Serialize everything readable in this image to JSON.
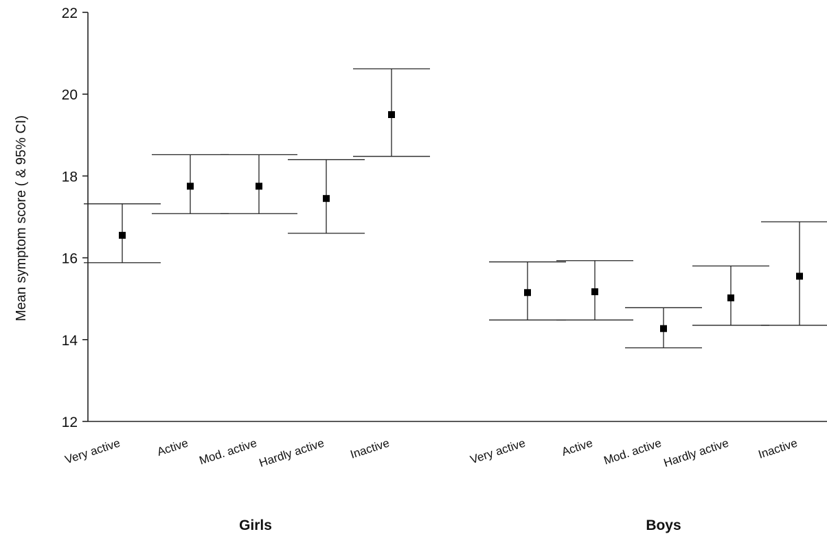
{
  "chart_data": {
    "type": "scatter",
    "title": "",
    "xlabel": "",
    "ylabel": "Mean symptom score ( & 95% CI)",
    "ylim": [
      12,
      22
    ],
    "yticks": [
      12,
      14,
      16,
      18,
      20,
      22
    ],
    "grid": false,
    "legend": "none",
    "marker_color": "#000000",
    "line_color": "#222222",
    "groups": [
      {
        "name": "Girls",
        "categories": [
          "Very active",
          "Active",
          "Mod. active",
          "Hardly active",
          "Inactive"
        ],
        "mean": [
          16.55,
          17.75,
          17.75,
          17.45,
          19.5
        ],
        "ci_low": [
          15.88,
          17.08,
          17.08,
          16.6,
          18.48
        ],
        "ci_high": [
          17.32,
          18.52,
          18.52,
          18.4,
          20.62
        ]
      },
      {
        "name": "Boys",
        "categories": [
          "Very active",
          "Active",
          "Mod. active",
          "Hardly active",
          "Inactive"
        ],
        "mean": [
          15.15,
          15.17,
          14.27,
          15.02,
          15.55
        ],
        "ci_low": [
          14.48,
          14.48,
          13.8,
          14.35,
          14.35
        ],
        "ci_high": [
          15.9,
          15.93,
          14.78,
          15.8,
          16.88
        ]
      }
    ]
  }
}
